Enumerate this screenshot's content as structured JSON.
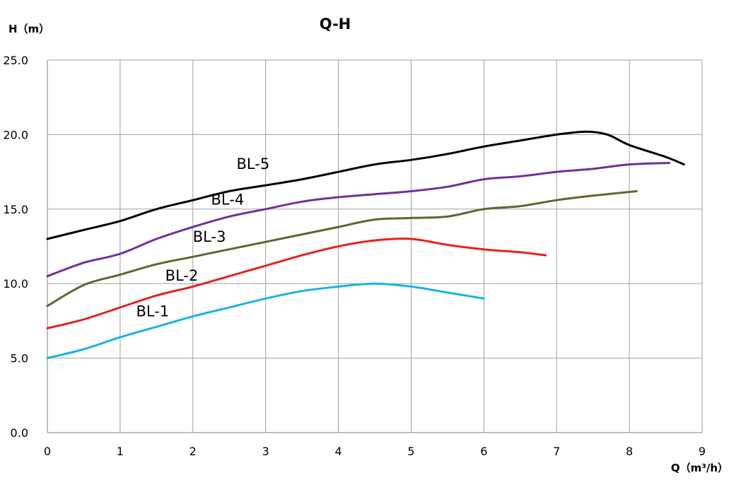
{
  "chart_data": {
    "type": "line",
    "title": "Q-H",
    "ylabel": "H（m）",
    "xlabel": "Q（m³/h）",
    "xlim": [
      0,
      9
    ],
    "ylim": [
      0,
      25
    ],
    "x_ticks": [
      "0",
      "1",
      "2",
      "3",
      "4",
      "5",
      "6",
      "7",
      "8",
      "9"
    ],
    "y_ticks": [
      "0.0",
      "5.0",
      "10.0",
      "15.0",
      "20.0",
      "25.0"
    ],
    "grid": true,
    "series": [
      {
        "name": "BL-1",
        "color": "#1ab2e6",
        "label_at": [
          1.22,
          7.8
        ],
        "points": [
          [
            0,
            5.0
          ],
          [
            0.5,
            5.6
          ],
          [
            1,
            6.4
          ],
          [
            1.5,
            7.1
          ],
          [
            2,
            7.8
          ],
          [
            2.5,
            8.4
          ],
          [
            3,
            9.0
          ],
          [
            3.5,
            9.5
          ],
          [
            4,
            9.8
          ],
          [
            4.5,
            10.0
          ],
          [
            5,
            9.8
          ],
          [
            5.5,
            9.4
          ],
          [
            6,
            9.0
          ]
        ]
      },
      {
        "name": "BL-2",
        "color": "#e8211c",
        "label_at": [
          1.62,
          10.2
        ],
        "points": [
          [
            0,
            7.0
          ],
          [
            0.5,
            7.6
          ],
          [
            1,
            8.4
          ],
          [
            1.5,
            9.2
          ],
          [
            2,
            9.8
          ],
          [
            2.5,
            10.5
          ],
          [
            3,
            11.2
          ],
          [
            3.5,
            11.9
          ],
          [
            4,
            12.5
          ],
          [
            4.5,
            12.9
          ],
          [
            5,
            13.0
          ],
          [
            5.5,
            12.6
          ],
          [
            6,
            12.3
          ],
          [
            6.5,
            12.1
          ],
          [
            6.85,
            11.9
          ]
        ]
      },
      {
        "name": "BL-3",
        "color": "#556b2f",
        "label_at": [
          2.0,
          12.8
        ],
        "points": [
          [
            0,
            8.5
          ],
          [
            0.5,
            9.9
          ],
          [
            1,
            10.6
          ],
          [
            1.5,
            11.3
          ],
          [
            2,
            11.8
          ],
          [
            2.5,
            12.3
          ],
          [
            3,
            12.8
          ],
          [
            3.5,
            13.3
          ],
          [
            4,
            13.8
          ],
          [
            4.5,
            14.3
          ],
          [
            5,
            14.4
          ],
          [
            5.5,
            14.5
          ],
          [
            6,
            15.0
          ],
          [
            6.5,
            15.2
          ],
          [
            7,
            15.6
          ],
          [
            7.5,
            15.9
          ],
          [
            8.1,
            16.2
          ]
        ]
      },
      {
        "name": "BL-4",
        "color": "#7030a0",
        "label_at": [
          2.25,
          15.3
        ],
        "points": [
          [
            0,
            10.5
          ],
          [
            0.5,
            11.4
          ],
          [
            1,
            12.0
          ],
          [
            1.5,
            13.0
          ],
          [
            2,
            13.8
          ],
          [
            2.5,
            14.5
          ],
          [
            3,
            15.0
          ],
          [
            3.5,
            15.5
          ],
          [
            4,
            15.8
          ],
          [
            4.5,
            16.0
          ],
          [
            5,
            16.2
          ],
          [
            5.5,
            16.5
          ],
          [
            6,
            17.0
          ],
          [
            6.5,
            17.2
          ],
          [
            7,
            17.5
          ],
          [
            7.5,
            17.7
          ],
          [
            8,
            18.0
          ],
          [
            8.55,
            18.1
          ]
        ]
      },
      {
        "name": "BL-5",
        "color": "#000000",
        "label_at": [
          2.6,
          17.7
        ],
        "points": [
          [
            0,
            13.0
          ],
          [
            0.5,
            13.6
          ],
          [
            1,
            14.2
          ],
          [
            1.5,
            15.0
          ],
          [
            2,
            15.6
          ],
          [
            2.5,
            16.2
          ],
          [
            3,
            16.6
          ],
          [
            3.5,
            17.0
          ],
          [
            4,
            17.5
          ],
          [
            4.5,
            18.0
          ],
          [
            5,
            18.3
          ],
          [
            5.5,
            18.7
          ],
          [
            6,
            19.2
          ],
          [
            6.5,
            19.6
          ],
          [
            7,
            20.0
          ],
          [
            7.4,
            20.2
          ],
          [
            7.7,
            20.0
          ],
          [
            8,
            19.3
          ],
          [
            8.5,
            18.5
          ],
          [
            8.75,
            18.0
          ]
        ]
      }
    ]
  }
}
